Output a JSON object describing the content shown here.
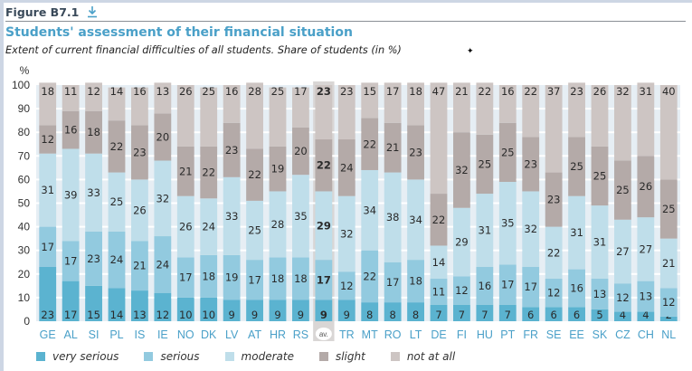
{
  "figure": {
    "label": "Figure B7.1",
    "download_icon": "download-icon",
    "title": "Students' assessment of their financial situation",
    "subtitle": "Extent of current financial difficulties of all students. Share of students (in %)"
  },
  "colors": {
    "very serious": "#5bb3d0",
    "serious": "#92cadf",
    "moderate": "#bfdeea",
    "slight": "#b4aaa8",
    "not at all": "#cdc5c3",
    "plot_background": "#e6eef4",
    "average_highlight": "#d9d6d5",
    "axis_label": "#4aa0c8"
  },
  "chart_data": {
    "type": "bar",
    "stacked": true,
    "title": "Students' assessment of their financial situation",
    "subtitle": "Extent of current financial difficulties of all students. Share of students (in %)",
    "xlabel": "",
    "ylabel": "%",
    "ylim": [
      0,
      100
    ],
    "yticks": [
      0,
      10,
      20,
      30,
      40,
      50,
      60,
      70,
      80,
      90,
      100
    ],
    "grid": true,
    "legend_position": "bottom",
    "highlight_category": "av.",
    "categories": [
      "GE",
      "AL",
      "SI",
      "PL",
      "IS",
      "IE",
      "NO",
      "DK",
      "LV",
      "AT",
      "HR",
      "RS",
      "av.",
      "TR",
      "MT",
      "RO",
      "LT",
      "DE",
      "FI",
      "HU",
      "PT",
      "FR",
      "SE",
      "EE",
      "SK",
      "CZ",
      "CH",
      "NL"
    ],
    "series": [
      {
        "name": "very serious",
        "values": [
          23,
          17,
          15,
          14,
          13,
          12,
          10,
          10,
          9,
          9,
          9,
          9,
          9,
          9,
          8,
          8,
          8,
          7,
          7,
          7,
          7,
          6,
          6,
          6,
          5,
          4,
          4,
          2
        ]
      },
      {
        "name": "serious",
        "values": [
          17,
          17,
          23,
          24,
          21,
          24,
          17,
          18,
          19,
          17,
          18,
          18,
          17,
          12,
          22,
          17,
          18,
          11,
          12,
          16,
          17,
          17,
          12,
          16,
          13,
          12,
          13,
          12
        ]
      },
      {
        "name": "moderate",
        "values": [
          31,
          39,
          33,
          25,
          26,
          32,
          26,
          24,
          33,
          25,
          28,
          35,
          29,
          32,
          34,
          38,
          34,
          14,
          29,
          31,
          35,
          32,
          22,
          31,
          31,
          27,
          27,
          21
        ]
      },
      {
        "name": "slight",
        "values": [
          12,
          16,
          18,
          22,
          23,
          20,
          21,
          22,
          23,
          22,
          19,
          20,
          22,
          24,
          22,
          21,
          23,
          22,
          32,
          25,
          25,
          23,
          23,
          25,
          25,
          25,
          26,
          25
        ]
      },
      {
        "name": "not at all",
        "values": [
          18,
          11,
          12,
          14,
          16,
          13,
          26,
          25,
          16,
          28,
          25,
          17,
          23,
          23,
          15,
          17,
          18,
          47,
          21,
          22,
          16,
          22,
          37,
          23,
          26,
          32,
          31,
          40
        ]
      }
    ]
  },
  "legend": [
    {
      "label": "very serious"
    },
    {
      "label": "serious"
    },
    {
      "label": "moderate"
    },
    {
      "label": "slight"
    },
    {
      "label": "not at all"
    }
  ]
}
